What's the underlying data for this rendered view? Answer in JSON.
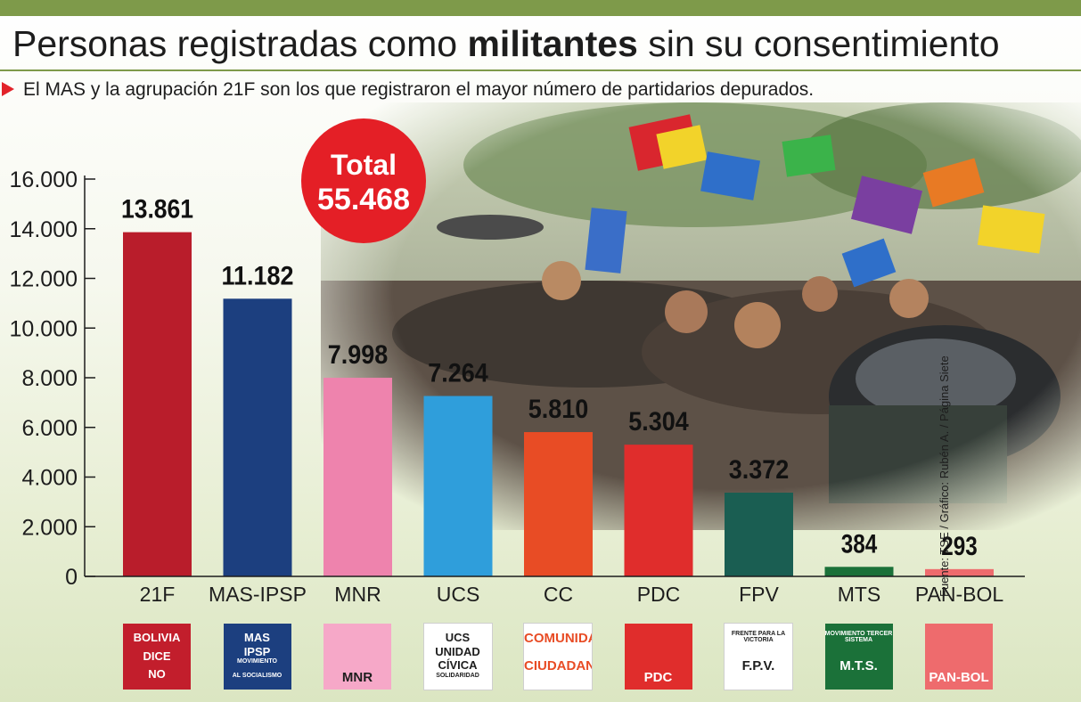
{
  "title": {
    "normal_1": "Personas registradas como ",
    "bold": "militantes",
    "normal_2": " sin su consentimiento"
  },
  "subtitle": "El MAS y la agrupación 21F son los que registraron el mayor número de partidarios depurados.",
  "total": {
    "label": "Total",
    "value": "55.468"
  },
  "source": "Fuente: TSE / Gráfico: Rubén A. / Página Siete",
  "colors": {
    "accent_green": "#7e9a4a",
    "total_red": "#e41f26",
    "bullet_red": "#e2232a"
  },
  "chart_data": {
    "type": "bar",
    "categories": [
      "21F",
      "MAS-IPSP",
      "MNR",
      "UCS",
      "CC",
      "PDC",
      "FPV",
      "MTS",
      "PAN-BOL"
    ],
    "values": [
      13861,
      11182,
      7998,
      7264,
      5810,
      5304,
      3372,
      384,
      293
    ],
    "value_labels": [
      "13.861",
      "11.182",
      "7.998",
      "7.264",
      "5.810",
      "5.304",
      "3.372",
      "384",
      "293"
    ],
    "bar_colors": [
      "#b91d2b",
      "#1c3f7f",
      "#ee83ad",
      "#2f9edb",
      "#e84c25",
      "#e02d2c",
      "#1a5e52",
      "#1b7139",
      "#ee6b6d"
    ],
    "ylim": [
      0,
      16000
    ],
    "yticks": [
      0,
      2000,
      4000,
      6000,
      8000,
      10000,
      12000,
      14000,
      16000
    ],
    "ytick_labels": [
      "0",
      "2.000",
      "4.000",
      "6.000",
      "8.000",
      "10.000",
      "12.000",
      "14.000",
      "16.000"
    ],
    "title": "Personas registradas como militantes sin su consentimiento",
    "xlabel": "",
    "ylabel": "",
    "grid": false
  },
  "logos": [
    {
      "lines": [
        "BOLIVIA",
        "DICE",
        "NO"
      ],
      "bg": "#c21e2c",
      "fg": "#ffffff"
    },
    {
      "lines": [
        "MAS",
        "IPSP",
        "MOVIMIENTO",
        "AL SOCIALISMO"
      ],
      "bg": "#1c3f7f",
      "fg": "#ffffff"
    },
    {
      "lines": [
        "MNR"
      ],
      "bg": "#f6a8c8",
      "fg": "#1d1d1d"
    },
    {
      "lines": [
        "UCS",
        "UNIDAD",
        "CÍVICA",
        "SOLIDARIDAD"
      ],
      "bg": "#ffffff",
      "fg": "#1d1d1d"
    },
    {
      "lines": [
        "COMUNIDAD",
        "CIUDADANA"
      ],
      "bg": "#ffffff",
      "fg": "#e84c25"
    },
    {
      "lines": [
        "PDC"
      ],
      "bg": "#e02d2c",
      "fg": "#ffffff"
    },
    {
      "lines": [
        "FRENTE PARA LA VICTORIA",
        "F.P.V."
      ],
      "bg": "#ffffff",
      "fg": "#1d1d1d"
    },
    {
      "lines": [
        "MOVIMIENTO TERCER SISTEMA",
        "M.T.S."
      ],
      "bg": "#1b7139",
      "fg": "#ffffff"
    },
    {
      "lines": [
        "PAN-BOL"
      ],
      "bg": "#ee6b6d",
      "fg": "#ffffff"
    }
  ]
}
